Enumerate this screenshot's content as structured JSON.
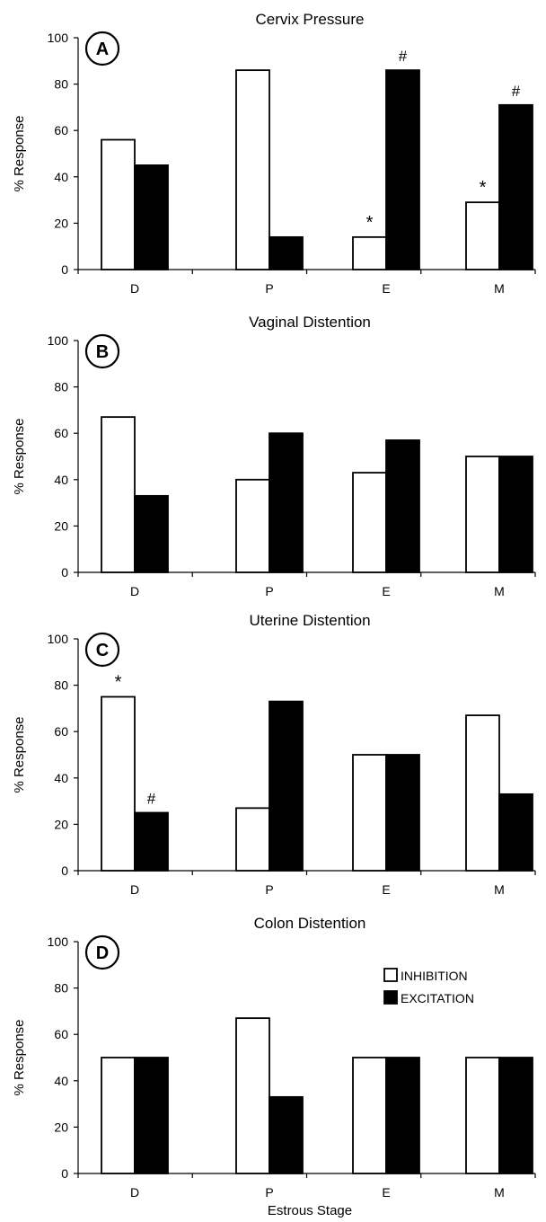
{
  "figure": {
    "xlabel": "Estrous Stage",
    "legend": {
      "inhibition_label": "INHIBITION",
      "excitation_label": "EXCITATION",
      "inhibition_color": "#ffffff",
      "excitation_color": "#000000"
    }
  },
  "chart_data": [
    {
      "type": "bar",
      "panel_letter": "A",
      "title": "Cervix Pressure",
      "ylabel": "% Response",
      "ylim": [
        0,
        100
      ],
      "yticks": [
        0,
        20,
        40,
        60,
        80,
        100
      ],
      "categories": [
        "D",
        "P",
        "E",
        "M"
      ],
      "series": [
        {
          "name": "INHIBITION",
          "values": [
            56,
            86,
            14,
            29
          ]
        },
        {
          "name": "EXCITATION",
          "values": [
            45,
            14,
            86,
            71
          ]
        }
      ],
      "annotations": [
        {
          "category": "E",
          "series": "INHIBITION",
          "text": "*"
        },
        {
          "category": "E",
          "series": "EXCITATION",
          "text": "#"
        },
        {
          "category": "M",
          "series": "INHIBITION",
          "text": "*"
        },
        {
          "category": "M",
          "series": "EXCITATION",
          "text": "#"
        }
      ],
      "legend": false
    },
    {
      "type": "bar",
      "panel_letter": "B",
      "title": "Vaginal Distention",
      "ylabel": "% Response",
      "ylim": [
        0,
        100
      ],
      "yticks": [
        0,
        20,
        40,
        60,
        80,
        100
      ],
      "categories": [
        "D",
        "P",
        "E",
        "M"
      ],
      "series": [
        {
          "name": "INHIBITION",
          "values": [
            67,
            40,
            43,
            50
          ]
        },
        {
          "name": "EXCITATION",
          "values": [
            33,
            60,
            57,
            50
          ]
        }
      ],
      "annotations": [],
      "legend": false
    },
    {
      "type": "bar",
      "panel_letter": "C",
      "title": "Uterine Distention",
      "ylabel": "% Response",
      "ylim": [
        0,
        100
      ],
      "yticks": [
        0,
        20,
        40,
        60,
        80,
        100
      ],
      "categories": [
        "D",
        "P",
        "E",
        "M"
      ],
      "series": [
        {
          "name": "INHIBITION",
          "values": [
            75,
            27,
            50,
            67
          ]
        },
        {
          "name": "EXCITATION",
          "values": [
            25,
            73,
            50,
            33
          ]
        }
      ],
      "annotations": [
        {
          "category": "D",
          "series": "INHIBITION",
          "text": "*"
        },
        {
          "category": "D",
          "series": "EXCITATION",
          "text": "#"
        }
      ],
      "legend": false
    },
    {
      "type": "bar",
      "panel_letter": "D",
      "title": "Colon Distention",
      "ylabel": "% Response",
      "ylim": [
        0,
        100
      ],
      "yticks": [
        0,
        20,
        40,
        60,
        80,
        100
      ],
      "categories": [
        "D",
        "P",
        "E",
        "M"
      ],
      "series": [
        {
          "name": "INHIBITION",
          "values": [
            50,
            67,
            50,
            50
          ]
        },
        {
          "name": "EXCITATION",
          "values": [
            50,
            33,
            50,
            50
          ]
        }
      ],
      "annotations": [],
      "legend": true,
      "legend_position": "right"
    }
  ]
}
